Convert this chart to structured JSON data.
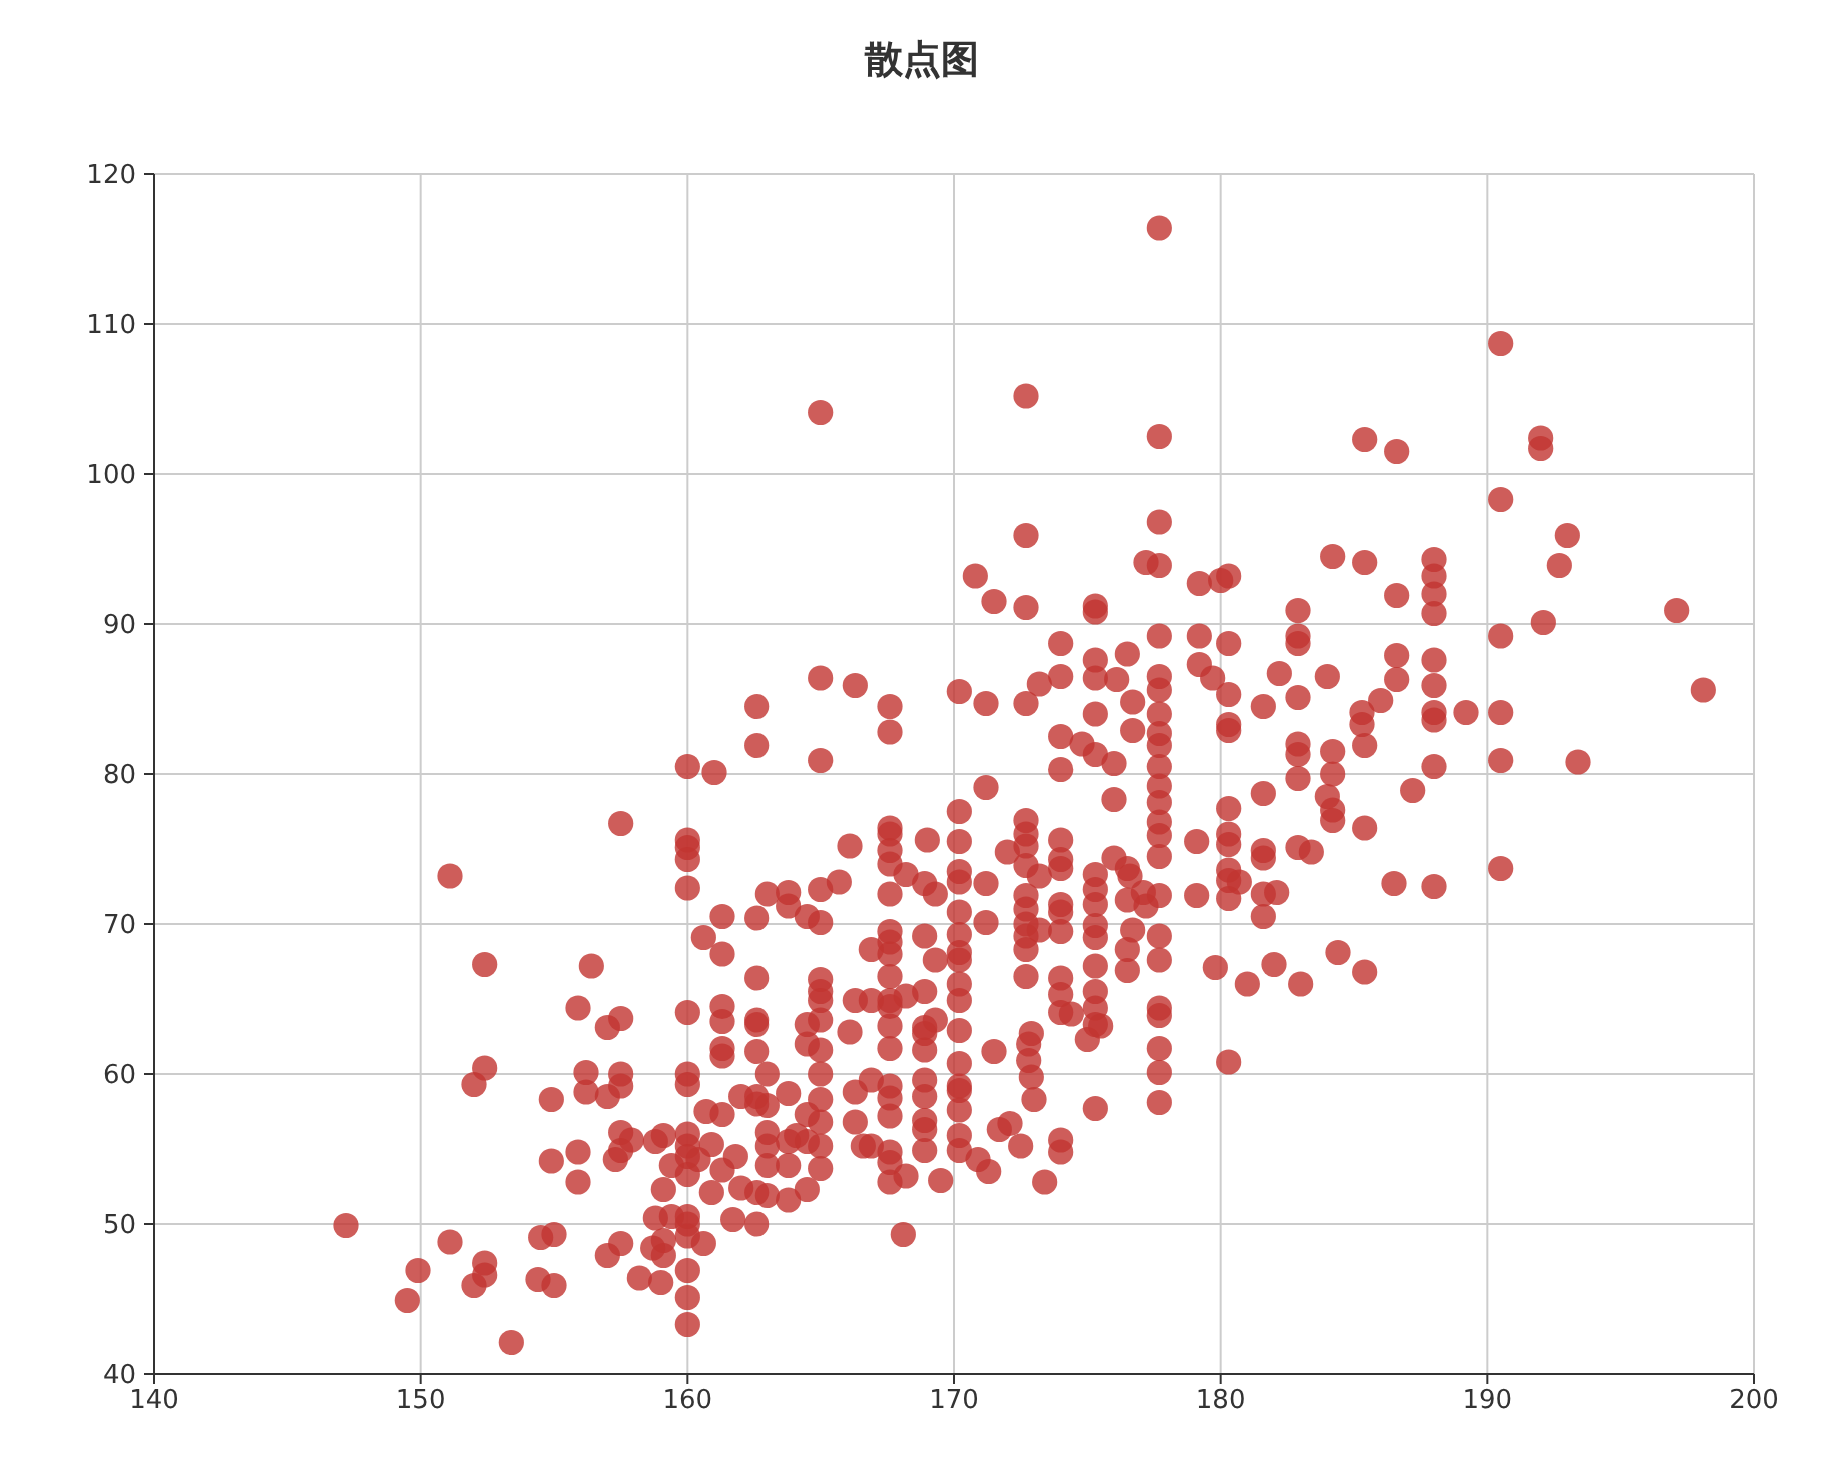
{
  "chart_data": {
    "type": "scatter",
    "title": "散点图",
    "color": "#c23531",
    "marker": "circle",
    "grid": true,
    "xlim": [
      140,
      200
    ],
    "xticks": [
      140,
      150,
      160,
      170,
      180,
      190,
      200
    ],
    "ylim": [
      40,
      120
    ],
    "yticks": [
      40,
      50,
      60,
      70,
      80,
      90,
      100,
      110,
      120
    ],
    "x": [
      177.7,
      165.0,
      172.7,
      190.5,
      177.7,
      192.0,
      192.0,
      185.4,
      186.6,
      190.5,
      193.0,
      172.7,
      177.7,
      192.7,
      197.1,
      198.1,
      193.4,
      192.1,
      190.5,
      190.5,
      190.5,
      190.5,
      188.0,
      188.0,
      188.0,
      188.0,
      188.0,
      188.0,
      188.0,
      188.0,
      188.0,
      188.0,
      187.2,
      186.6,
      186.6,
      186.6,
      189.2,
      186.5,
      185.4,
      185.3,
      185.3,
      185.4,
      185.4,
      185.4,
      186.0,
      184.2,
      184.0,
      184.2,
      184.2,
      184.2,
      184.2,
      184.0,
      183.4,
      184.4,
      182.9,
      182.9,
      182.9,
      182.9,
      182.9,
      182.9,
      182.9,
      182.9,
      183.0,
      182.2,
      182.0,
      181.6,
      181.6,
      181.6,
      181.6,
      181.6,
      181.6,
      181.0,
      182.1,
      180.3,
      180.3,
      180.3,
      180.3,
      180.3,
      180.3,
      180.3,
      180.3,
      180.3,
      180.3,
      180.3,
      180.3,
      180.0,
      180.7,
      179.2,
      179.2,
      179.2,
      179.1,
      179.1,
      179.8,
      179.7,
      177.7,
      177.7,
      177.7,
      177.7,
      177.7,
      177.7,
      177.7,
      177.7,
      177.7,
      177.7,
      177.7,
      177.7,
      177.7,
      177.7,
      177.7,
      177.7,
      177.7,
      177.7,
      177.7,
      177.7,
      177.7,
      177.2,
      177.2,
      176.7,
      176.7,
      176.6,
      176.7,
      177.1,
      176.5,
      176.1,
      176.5,
      176.5,
      176.5,
      176.5,
      176.0,
      176.0,
      176.0,
      175.3,
      175.3,
      175.3,
      175.3,
      175.3,
      175.3,
      175.3,
      175.3,
      175.3,
      175.3,
      175.3,
      175.3,
      175.3,
      175.3,
      175.3,
      175.3,
      174.8,
      175.0,
      175.5,
      174.4,
      174.0,
      174.0,
      174.0,
      174.0,
      174.0,
      174.0,
      174.0,
      174.0,
      174.0,
      174.0,
      174.0,
      174.0,
      174.0,
      174.0,
      174.0,
      173.2,
      172.7,
      172.7,
      172.7,
      172.7,
      172.7,
      172.7,
      172.7,
      172.7,
      172.7,
      172.7,
      172.7,
      172.7,
      172.9,
      172.8,
      172.8,
      172.9,
      173.2,
      173.2,
      173.0,
      172.5,
      173.4,
      171.5,
      170.8,
      171.2,
      171.2,
      171.2,
      171.2,
      171.5,
      172.0,
      171.3,
      170.9,
      171.7,
      172.1,
      170.2,
      170.2,
      170.2,
      170.2,
      170.2,
      170.2,
      170.2,
      170.2,
      170.2,
      170.2,
      170.2,
      170.2,
      170.2,
      170.2,
      170.2,
      170.2,
      170.2,
      170.2,
      169.0,
      168.9,
      168.9,
      168.9,
      168.9,
      168.9,
      168.9,
      168.9,
      168.9,
      168.9,
      168.9,
      168.9,
      169.3,
      169.3,
      169.3,
      169.5,
      168.2,
      168.2,
      168.2,
      168.1,
      167.6,
      167.6,
      167.6,
      167.6,
      167.6,
      167.6,
      167.6,
      167.6,
      167.6,
      167.6,
      167.6,
      167.6,
      167.6,
      167.6,
      167.6,
      167.6,
      167.6,
      167.6,
      167.6,
      167.6,
      167.6,
      166.9,
      166.9,
      166.9,
      166.9,
      166.1,
      166.3,
      166.3,
      166.6,
      166.3,
      166.3,
      166.1,
      165.7,
      165.0,
      165.0,
      165.0,
      165.0,
      165.0,
      165.0,
      165.0,
      165.0,
      165.0,
      165.0,
      165.0,
      165.0,
      165.0,
      165.0,
      164.5,
      164.5,
      164.5,
      164.5,
      164.5,
      164.5,
      163.8,
      163.8,
      163.8,
      163.8,
      163.8,
      163.8,
      164.1,
      163.0,
      163.0,
      163.0,
      163.0,
      163.0,
      163.0,
      163.0,
      162.6,
      162.6,
      162.6,
      162.6,
      162.6,
      162.6,
      162.6,
      162.6,
      162.6,
      162.6,
      162.6,
      162.0,
      161.8,
      162.0,
      161.7,
      161.3,
      161.3,
      161.3,
      161.3,
      161.3,
      161.3,
      161.3,
      161.3,
      161.0,
      160.6,
      160.7,
      160.9,
      160.4,
      160.9,
      160.6,
      160.0,
      160.0,
      160.0,
      160.0,
      160.0,
      160.0,
      160.0,
      160.0,
      160.0,
      160.0,
      160.0,
      160.0,
      160.0,
      160.0,
      160.0,
      160.0,
      160.0,
      160.0,
      159.4,
      159.4,
      159.1,
      159.1,
      159.1,
      159.0,
      158.8,
      158.7,
      158.8,
      159.1,
      158.2,
      157.5,
      157.5,
      157.5,
      157.5,
      157.5,
      157.5,
      157.5,
      157.3,
      157.0,
      157.0,
      157.0,
      157.9,
      156.4,
      155.9,
      154.9,
      156.2,
      156.2,
      154.9,
      155.9,
      155.9,
      147.2,
      151.1,
      149.9,
      149.5,
      152.4,
      152.0,
      152.4,
      153.4,
      154.5,
      155.0,
      154.4,
      155.0,
      151.1,
      152.4,
      152.0,
      152.4
    ],
    "values": [
      116.4,
      104.1,
      105.2,
      108.7,
      102.5,
      102.4,
      101.7,
      102.3,
      101.5,
      98.3,
      95.9,
      95.9,
      96.8,
      93.9,
      90.9,
      85.6,
      80.8,
      90.1,
      89.2,
      84.1,
      80.9,
      73.7,
      94.3,
      93.2,
      92.0,
      90.7,
      87.6,
      85.9,
      84.1,
      83.6,
      80.5,
      72.5,
      78.9,
      91.9,
      87.9,
      86.3,
      84.1,
      72.7,
      94.1,
      84.1,
      83.3,
      81.9,
      76.4,
      66.8,
      84.9,
      94.5,
      86.5,
      81.5,
      80.0,
      77.6,
      76.9,
      78.5,
      74.8,
      68.1,
      90.9,
      89.2,
      88.7,
      85.1,
      82.0,
      81.3,
      79.7,
      75.1,
      66.0,
      86.7,
      67.3,
      84.5,
      78.7,
      74.9,
      74.4,
      70.5,
      72.0,
      66.0,
      72.1,
      93.2,
      88.7,
      85.3,
      83.3,
      82.9,
      77.7,
      76.0,
      75.3,
      73.6,
      72.9,
      71.7,
      60.8,
      92.9,
      72.8,
      92.7,
      89.2,
      87.3,
      75.5,
      71.9,
      67.1,
      86.4,
      93.9,
      89.2,
      86.5,
      85.6,
      84.0,
      82.7,
      81.9,
      80.5,
      79.2,
      78.1,
      76.8,
      75.9,
      74.5,
      71.9,
      69.2,
      67.6,
      64.4,
      63.9,
      61.7,
      60.1,
      58.1,
      94.1,
      71.2,
      84.8,
      82.9,
      73.2,
      69.6,
      72.1,
      88.0,
      86.3,
      73.7,
      71.6,
      68.3,
      66.9,
      80.7,
      78.3,
      74.4,
      81.3,
      91.2,
      90.8,
      87.6,
      86.4,
      84.0,
      73.3,
      72.3,
      71.3,
      69.9,
      69.1,
      67.2,
      65.5,
      64.4,
      63.3,
      57.7,
      82.0,
      62.3,
      63.2,
      64.0,
      88.7,
      86.5,
      82.5,
      80.3,
      75.6,
      74.3,
      73.7,
      71.3,
      70.8,
      69.5,
      66.4,
      65.3,
      64.1,
      55.6,
      54.8,
      86.0,
      91.1,
      84.7,
      76.9,
      76.0,
      75.2,
      73.9,
      71.9,
      71.0,
      70.0,
      69.2,
      68.3,
      66.5,
      62.7,
      62.0,
      60.9,
      59.8,
      73.2,
      69.6,
      58.3,
      55.2,
      52.8,
      91.5,
      93.2,
      84.7,
      79.1,
      72.7,
      70.1,
      61.5,
      74.8,
      53.5,
      54.3,
      56.3,
      56.7,
      85.5,
      77.5,
      75.5,
      73.5,
      72.8,
      70.8,
      69.3,
      68.1,
      67.6,
      66.0,
      64.9,
      62.9,
      60.7,
      59.2,
      58.9,
      57.6,
      55.9,
      54.9,
      75.6,
      72.7,
      69.2,
      65.5,
      63.1,
      62.7,
      61.6,
      59.6,
      58.5,
      56.9,
      56.3,
      54.9,
      72.0,
      67.6,
      63.6,
      52.9,
      73.3,
      65.2,
      53.2,
      49.3,
      84.5,
      82.8,
      76.4,
      76.0,
      74.9,
      74.0,
      72.0,
      69.5,
      68.8,
      68.0,
      66.5,
      64.9,
      64.5,
      63.2,
      61.7,
      59.2,
      58.4,
      57.2,
      54.8,
      54.1,
      52.8,
      68.3,
      64.9,
      59.6,
      55.2,
      62.8,
      58.8,
      56.8,
      55.2,
      64.9,
      85.9,
      75.2,
      72.8,
      86.4,
      80.9,
      72.3,
      70.1,
      66.3,
      65.5,
      64.9,
      63.6,
      61.6,
      60.0,
      58.3,
      56.8,
      55.2,
      53.7,
      70.5,
      63.3,
      62.0,
      57.3,
      55.5,
      52.3,
      72.1,
      71.2,
      58.7,
      53.9,
      55.5,
      51.6,
      55.9,
      72.0,
      60.0,
      57.9,
      56.1,
      55.2,
      53.9,
      51.9,
      84.5,
      81.9,
      70.4,
      66.4,
      63.6,
      63.3,
      61.5,
      58.5,
      58.0,
      52.1,
      50.0,
      58.5,
      54.5,
      52.4,
      50.3,
      61.2,
      61.7,
      64.5,
      63.5,
      70.5,
      68.0,
      57.3,
      53.6,
      80.1,
      69.1,
      57.5,
      55.3,
      54.3,
      52.1,
      48.7,
      80.5,
      75.6,
      75.1,
      74.3,
      72.4,
      64.1,
      60.0,
      59.3,
      56.0,
      55.2,
      54.5,
      53.3,
      50.5,
      50.0,
      49.2,
      46.9,
      45.1,
      43.3,
      50.5,
      53.9,
      52.3,
      48.9,
      47.9,
      46.1,
      50.4,
      48.4,
      55.5,
      55.9,
      46.4,
      76.7,
      63.7,
      60.0,
      59.2,
      56.1,
      54.9,
      48.7,
      54.3,
      63.1,
      58.5,
      47.9,
      55.6,
      67.2,
      64.4,
      58.3,
      58.8,
      60.1,
      54.2,
      54.8,
      52.8,
      49.9,
      48.8,
      46.9,
      44.9,
      47.4,
      45.9,
      46.6,
      42.1,
      49.1,
      49.3,
      46.3,
      45.9,
      73.2,
      60.4,
      59.3,
      67.3
    ]
  }
}
